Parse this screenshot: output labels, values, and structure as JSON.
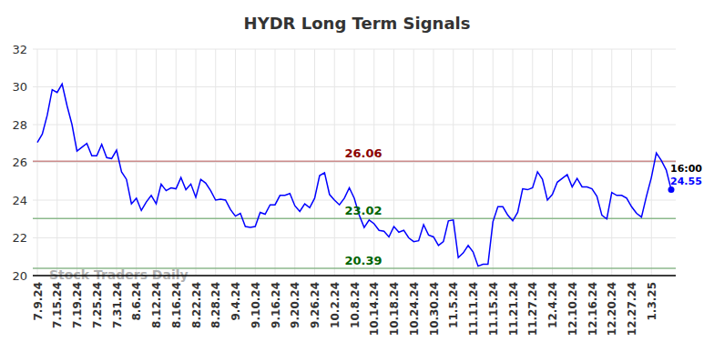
{
  "chart_data": {
    "type": "line",
    "title": "HYDR Long Term Signals",
    "watermark": "Stock Traders Daily",
    "categories": [
      "7.9.24",
      null,
      null,
      null,
      "7.15.24",
      null,
      null,
      null,
      "7.19.24",
      null,
      null,
      null,
      "7.25.24",
      null,
      null,
      null,
      "7.31.24",
      null,
      null,
      null,
      "8.6.24",
      null,
      null,
      null,
      "8.12.24",
      null,
      null,
      null,
      "8.16.24",
      null,
      null,
      null,
      "8.22.24",
      null,
      null,
      null,
      "8.28.24",
      null,
      null,
      null,
      "9.4.24",
      null,
      null,
      null,
      "9.10.24",
      null,
      null,
      null,
      "9.16.24",
      null,
      null,
      null,
      "9.20.24",
      null,
      null,
      null,
      "9.26.24",
      null,
      null,
      null,
      "10.2.24",
      null,
      null,
      null,
      "10.8.24",
      null,
      null,
      null,
      "10.14.24",
      null,
      null,
      null,
      "10.18.24",
      null,
      null,
      null,
      "10.24.24",
      null,
      null,
      null,
      "10.30.24",
      null,
      null,
      null,
      "11.5.24",
      null,
      null,
      null,
      "11.11.24",
      null,
      null,
      null,
      "11.15.24",
      null,
      null,
      null,
      "11.21.24",
      null,
      null,
      null,
      "11.27.24",
      null,
      null,
      null,
      "12.4.24",
      null,
      null,
      null,
      "12.10.24",
      null,
      null,
      null,
      "12.16.24",
      null,
      null,
      null,
      "12.20.24",
      null,
      null,
      null,
      "12.27.24",
      null,
      null,
      null,
      "1.3.25",
      null,
      null,
      null,
      null
    ],
    "series": [
      {
        "name": "HYDR",
        "color": "#0000ff",
        "values": [
          27.05,
          27.5,
          28.5,
          29.85,
          29.7,
          30.15,
          29.0,
          28.0,
          26.6,
          26.8,
          27.0,
          26.35,
          26.35,
          26.95,
          26.25,
          26.2,
          26.65,
          25.5,
          25.1,
          23.8,
          24.1,
          23.45,
          23.9,
          24.25,
          23.8,
          24.85,
          24.5,
          24.65,
          24.6,
          25.2,
          24.55,
          24.85,
          24.15,
          25.1,
          24.9,
          24.5,
          24.0,
          24.05,
          24.0,
          23.5,
          23.15,
          23.3,
          22.6,
          22.55,
          22.6,
          23.35,
          23.25,
          23.75,
          23.75,
          24.25,
          24.25,
          24.35,
          23.7,
          23.4,
          23.8,
          23.6,
          24.1,
          25.3,
          25.45,
          24.3,
          24.0,
          23.75,
          24.1,
          24.65,
          24.1,
          23.2,
          22.55,
          22.95,
          22.75,
          22.4,
          22.35,
          22.05,
          22.6,
          22.3,
          22.4,
          22.0,
          21.8,
          21.85,
          22.7,
          22.15,
          22.05,
          21.6,
          21.8,
          22.9,
          22.95,
          20.95,
          21.2,
          21.6,
          21.25,
          20.5,
          20.6,
          20.6,
          22.85,
          23.65,
          23.65,
          23.2,
          22.9,
          23.35,
          24.6,
          24.55,
          24.65,
          25.5,
          25.1,
          24.0,
          24.3,
          24.95,
          25.15,
          25.35,
          24.7,
          25.15,
          24.7,
          24.7,
          24.6,
          24.2,
          23.2,
          23.0,
          24.4,
          24.25,
          24.25,
          24.1,
          23.65,
          23.3,
          23.1,
          24.2,
          25.2,
          26.5,
          26.1,
          25.6,
          24.55
        ]
      }
    ],
    "hlines": [
      {
        "value": 26.06,
        "label": "26.06",
        "color": "#8b0000"
      },
      {
        "value": 23.02,
        "label": "23.02",
        "color": "#006400"
      },
      {
        "value": 20.39,
        "label": "20.39",
        "color": "#006400"
      }
    ],
    "last_point": {
      "time_label": "16:00",
      "value_label": "24.55"
    },
    "ylim": [
      20,
      32
    ],
    "yticks": [
      20,
      22,
      24,
      26,
      28,
      30,
      32
    ],
    "grid": true
  }
}
